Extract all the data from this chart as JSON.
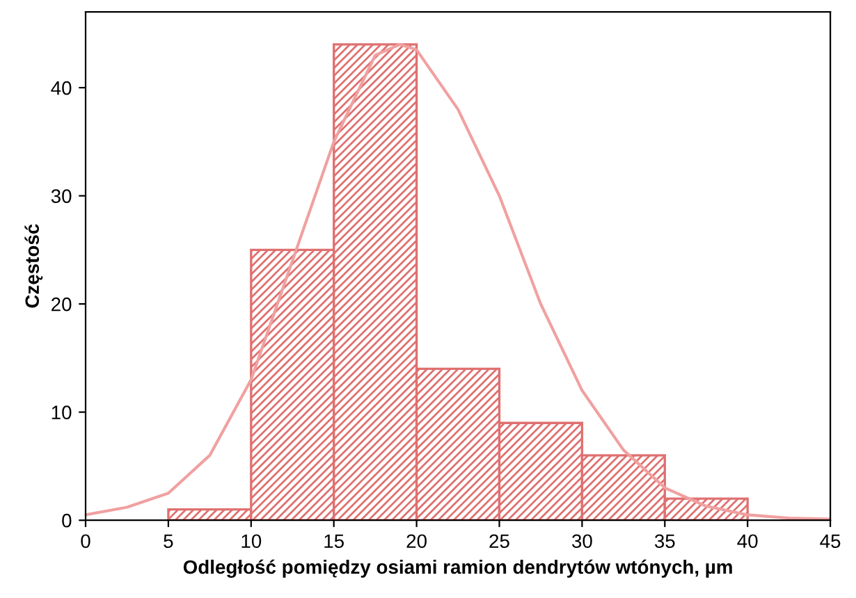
{
  "chart_data": {
    "type": "histogram",
    "xlabel": "Odległość pomiędzy osiami ramion dendrytów wtónych, µm",
    "ylabel": "Częstość",
    "bins": [
      5,
      10,
      15,
      20,
      25,
      30,
      35,
      40
    ],
    "values": [
      1,
      25,
      44,
      14,
      9,
      6,
      2
    ],
    "color": "#e07070",
    "series": [
      {
        "type": "line",
        "color": "#f0a0a0",
        "x": [
          0,
          2.5,
          5,
          7.5,
          10,
          12.5,
          15,
          17.5,
          19,
          20,
          22.5,
          25,
          27.5,
          30,
          32.5,
          35,
          37.5,
          40,
          42.5,
          45
        ],
        "values": [
          0.5,
          1.2,
          2.5,
          6,
          13,
          24,
          35,
          43,
          44,
          43.5,
          38,
          30,
          20,
          12,
          6.5,
          3,
          1.3,
          0.5,
          0.2,
          0.1
        ]
      }
    ],
    "xlim": [
      0,
      45
    ],
    "xticks": [
      0,
      5,
      10,
      15,
      20,
      25,
      30,
      35,
      40,
      45
    ],
    "ylim": [
      0,
      47
    ],
    "yticks": [
      0,
      10,
      20,
      30,
      40
    ],
    "grid": false
  }
}
